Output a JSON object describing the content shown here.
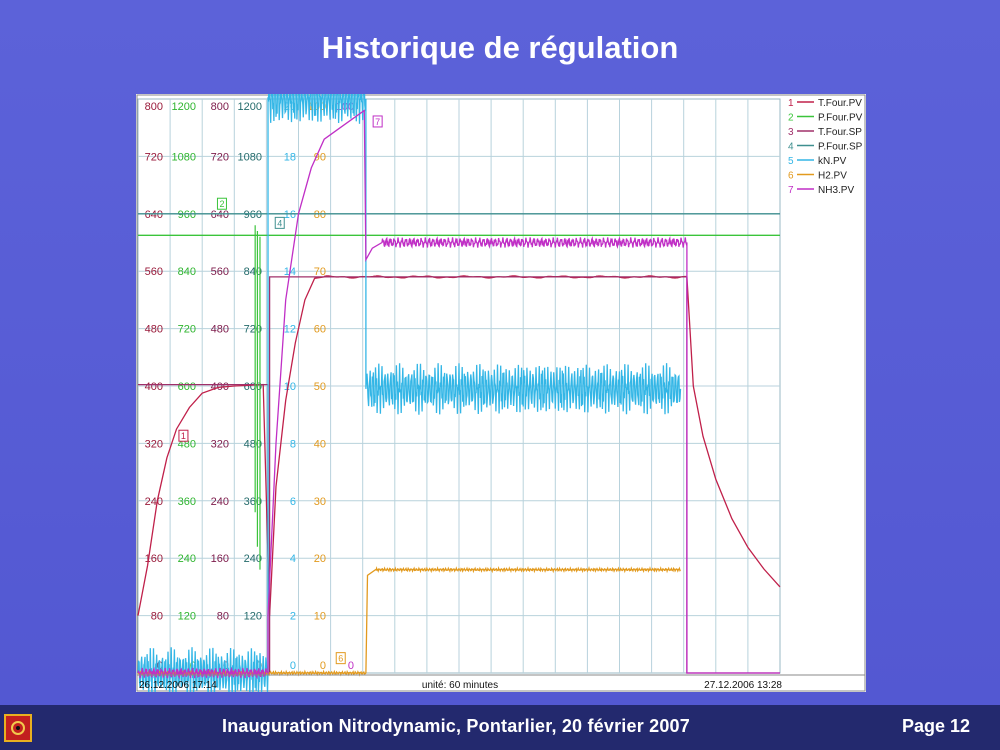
{
  "slide": {
    "title": "Historique de régulation",
    "footer": "Inauguration Nitrodynamic, Pontarlier, 20 février 2007",
    "page": "Page 12"
  },
  "chart_data": {
    "type": "line",
    "start_label": "26.12.2006 17:14",
    "end_label": "27.12.2006 13:28",
    "unit_label": "unité: 60 minutes",
    "x_range": [
      0,
      20
    ],
    "axes": [
      {
        "id": "a1",
        "color": "#9a1b3b",
        "range": [
          0,
          800
        ],
        "ticks": [
          "0",
          "80",
          "160",
          "240",
          "320",
          "400",
          "480",
          "560",
          "640",
          "720",
          "800"
        ]
      },
      {
        "id": "a2",
        "color": "#2fb52f",
        "range": [
          0,
          1200
        ],
        "ticks": [
          "0",
          "120",
          "240",
          "360",
          "480",
          "600",
          "720",
          "840",
          "960",
          "1080",
          "1200"
        ]
      },
      {
        "id": "a3",
        "color": "#7d1b4b",
        "range": [
          0,
          800
        ],
        "ticks": [
          "0",
          "80",
          "160",
          "240",
          "320",
          "400",
          "480",
          "560",
          "640",
          "720",
          "800"
        ]
      },
      {
        "id": "a4",
        "color": "#246b6b",
        "range": [
          0,
          1200
        ],
        "ticks": [
          "0",
          "120",
          "240",
          "360",
          "480",
          "600",
          "720",
          "840",
          "960",
          "1080",
          "1200"
        ]
      },
      {
        "id": "a5",
        "color": "#33b6e6",
        "range": [
          0,
          20
        ],
        "ticks": [
          "0",
          "2",
          "4",
          "6",
          "8",
          "10",
          "12",
          "14",
          "16",
          "18",
          "20"
        ]
      },
      {
        "id": "a6",
        "color": "#e29a1e",
        "range": [
          0,
          100
        ],
        "ticks": [
          "0",
          "10",
          "20",
          "30",
          "40",
          "50",
          "60",
          "70",
          "80",
          "90",
          "100"
        ]
      },
      {
        "id": "a7",
        "color": "#c02fc6",
        "range": [
          0,
          100
        ],
        "ticks": [
          "0",
          "",
          "",
          "",
          "",
          "",
          "",
          "",
          "",
          "",
          "100"
        ]
      }
    ],
    "series": [
      {
        "id": 1,
        "name": "T.Four.PV",
        "color": "#c0204a",
        "axis": "a1",
        "points": [
          [
            0,
            80
          ],
          [
            0.3,
            150
          ],
          [
            0.6,
            240
          ],
          [
            0.9,
            300
          ],
          [
            1.2,
            340
          ],
          [
            1.6,
            370
          ],
          [
            2,
            390
          ],
          [
            2.5,
            398
          ],
          [
            3,
            400
          ],
          [
            3.9,
            402
          ],
          [
            4.1,
            80
          ],
          [
            4.3,
            260
          ],
          [
            4.6,
            380
          ],
          [
            4.9,
            460
          ],
          [
            5.2,
            520
          ],
          [
            5.5,
            550
          ],
          [
            5.8,
            552
          ],
          [
            17.1,
            552
          ],
          [
            17.3,
            400
          ],
          [
            17.6,
            330
          ],
          [
            18,
            270
          ],
          [
            18.5,
            215
          ],
          [
            19,
            175
          ],
          [
            19.5,
            145
          ],
          [
            20,
            120
          ]
        ]
      },
      {
        "id": 2,
        "name": "P.Four.PV",
        "color": "#3bc43b",
        "axis": "a2",
        "points": [
          [
            0,
            915
          ],
          [
            20,
            915
          ]
        ]
      },
      {
        "id": 3,
        "name": "T.Four.SP",
        "color": "#a0306a",
        "axis": "a3",
        "points": [
          [
            0,
            402
          ],
          [
            4.05,
            402
          ],
          [
            4.05,
            0
          ],
          [
            4.1,
            0
          ],
          [
            4.1,
            552
          ],
          [
            17.1,
            552
          ],
          [
            17.1,
            0
          ],
          [
            20,
            0
          ]
        ]
      },
      {
        "id": 4,
        "name": "P.Four.SP",
        "color": "#3f8f8f",
        "axis": "a4",
        "points": [
          [
            0,
            960
          ],
          [
            20,
            960
          ]
        ]
      },
      {
        "id": 5,
        "name": "kN.PV",
        "color": "#33b6e6",
        "axis": "a5",
        "points": [
          [
            0,
            0
          ],
          [
            4.05,
            0
          ],
          [
            4.05,
            20
          ],
          [
            7.1,
            20
          ],
          [
            7.1,
            9.9
          ],
          [
            16.9,
            9.9
          ]
        ]
      },
      {
        "id": 6,
        "name": "H2.PV",
        "color": "#e29a1e",
        "axis": "a6",
        "points": [
          [
            0,
            0
          ],
          [
            7.1,
            0
          ],
          [
            7.15,
            17
          ],
          [
            7.4,
            18
          ],
          [
            16.9,
            18
          ]
        ]
      },
      {
        "id": 7,
        "name": "NH3.PV",
        "color": "#c02fc6",
        "axis": "a7",
        "points": [
          [
            0,
            0
          ],
          [
            4.05,
            0
          ],
          [
            4.05,
            10
          ],
          [
            4.3,
            40
          ],
          [
            4.6,
            65
          ],
          [
            5,
            80
          ],
          [
            5.4,
            88
          ],
          [
            5.8,
            93
          ],
          [
            6.3,
            95
          ],
          [
            6.8,
            97
          ],
          [
            7.05,
            98
          ],
          [
            7.1,
            72
          ],
          [
            7.3,
            74
          ],
          [
            7.6,
            75
          ],
          [
            17.1,
            75
          ],
          [
            17.1,
            0
          ],
          [
            20,
            0
          ]
        ]
      }
    ]
  }
}
